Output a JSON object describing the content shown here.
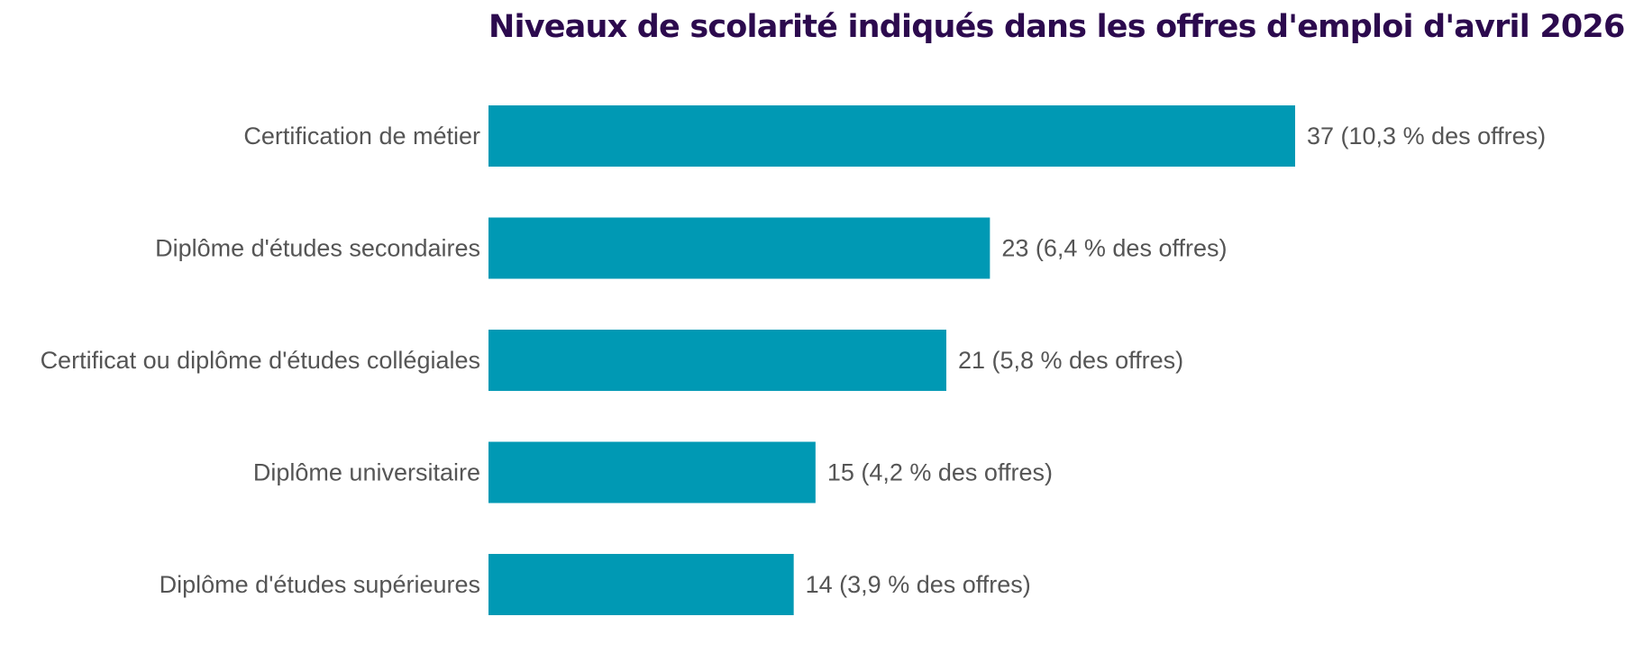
{
  "chart_data": {
    "type": "bar",
    "orientation": "horizontal",
    "title": "Niveaux de scolarité indiqués dans les offres d'emploi d'avril 2026",
    "categories": [
      "Certification de métier",
      "Diplôme d'études secondaires",
      "Certificat ou diplôme d'études collégiales",
      "Diplôme universitaire",
      "Diplôme d'études supérieures"
    ],
    "values": [
      37,
      23,
      21,
      15,
      14
    ],
    "value_labels": [
      "37  (10,3 % des offres)",
      "23  (6,4 % des offres)",
      "21  (5,8 % des offres)",
      "15  (4,2 % des offres)",
      "14  (3,9 % des offres)"
    ],
    "xlim": [
      0,
      37
    ],
    "grid": false,
    "bar_color": "#0099b4",
    "label_color": "#555555",
    "title_color": "#2c0a4e"
  }
}
